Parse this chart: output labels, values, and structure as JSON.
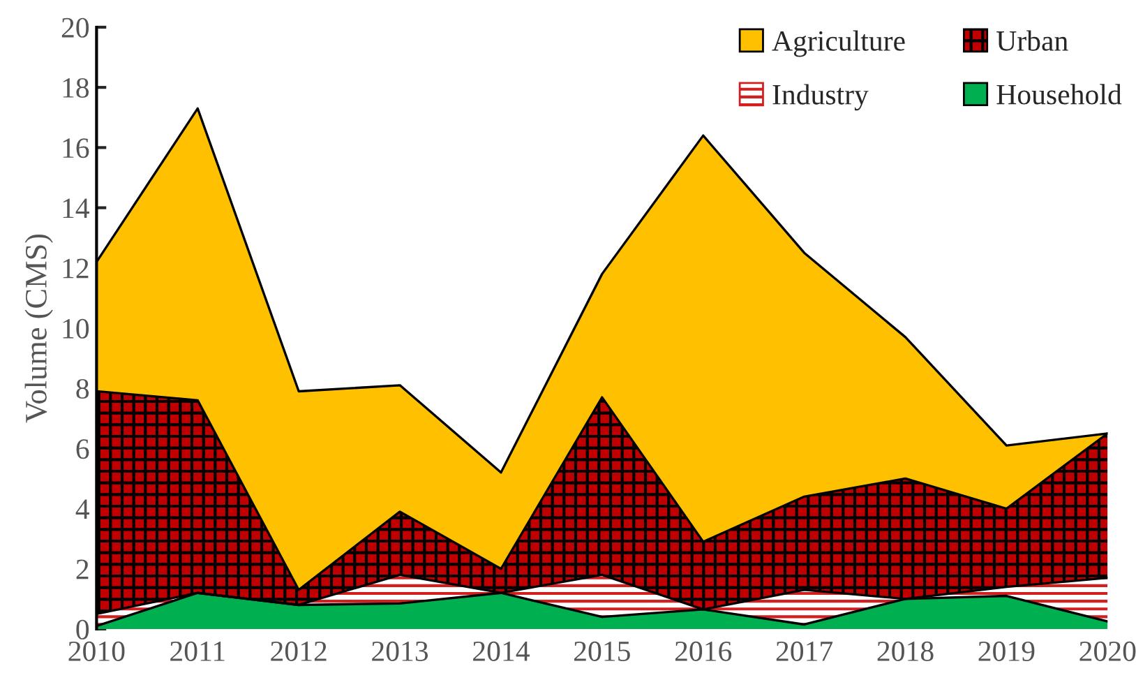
{
  "chart_data": {
    "type": "area",
    "stacked": true,
    "ylabel": "Volume (CMS)",
    "x": [
      2010,
      2011,
      2012,
      2013,
      2014,
      2015,
      2016,
      2017,
      2018,
      2019,
      2020
    ],
    "xlim": [
      2010,
      2020
    ],
    "xticks": [
      2010,
      2011,
      2012,
      2013,
      2014,
      2015,
      2016,
      2017,
      2018,
      2019,
      2020
    ],
    "ylim": [
      0,
      20
    ],
    "yticks": [
      0,
      2,
      4,
      6,
      8,
      10,
      12,
      14,
      16,
      18,
      20
    ],
    "grid": false,
    "legend": "top right",
    "series": [
      {
        "name": "Household",
        "color": "#00b050",
        "values": [
          0.1,
          1.2,
          0.8,
          0.85,
          1.2,
          0.4,
          0.65,
          0.15,
          1.0,
          1.1,
          0.25
        ]
      },
      {
        "name": "Industry",
        "color": "#ffffff",
        "values": [
          0.4,
          0,
          0,
          0.95,
          0,
          1.4,
          0,
          1.15,
          0,
          0.3,
          1.45
        ]
      },
      {
        "name": "Urban",
        "color": "#c00000",
        "values": [
          7.4,
          6.4,
          0.5,
          2.1,
          0.8,
          5.9,
          2.25,
          3.1,
          4.0,
          2.6,
          4.8
        ]
      },
      {
        "name": "Agriculture",
        "color": "#ffc000",
        "values": [
          4.3,
          9.7,
          6.6,
          4.2,
          3.2,
          4.1,
          13.5,
          8.1,
          4.7,
          2.1,
          0
        ]
      }
    ]
  }
}
